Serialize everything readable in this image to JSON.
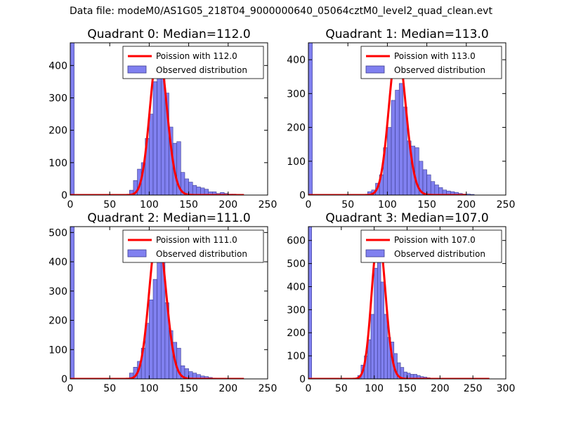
{
  "figure": {
    "title": "Data file: modeM0/AS1G05_218T04_9000000640_05064cztM0_level2_quad_clean.evt"
  },
  "colors": {
    "bar_fill": "#8080f0",
    "bar_stroke": "#3b3b8f",
    "poisson_line": "#ff0000",
    "axes": "#000000"
  },
  "chart_data": [
    {
      "type": "bar",
      "title": "Quadrant 0: Median=112.0",
      "median": 112.0,
      "xlim": [
        0,
        250
      ],
      "ylim": [
        0,
        470
      ],
      "xticks": [
        0,
        50,
        100,
        150,
        200,
        250
      ],
      "yticks": [
        0,
        100,
        200,
        300,
        400
      ],
      "bin_width": 5,
      "bins": [
        [
          0,
          470
        ],
        [
          75,
          15
        ],
        [
          80,
          45
        ],
        [
          85,
          80
        ],
        [
          90,
          100
        ],
        [
          95,
          175
        ],
        [
          100,
          250
        ],
        [
          105,
          350
        ],
        [
          110,
          400
        ],
        [
          115,
          400
        ],
        [
          120,
          315
        ],
        [
          125,
          210
        ],
        [
          130,
          160
        ],
        [
          135,
          165
        ],
        [
          140,
          70
        ],
        [
          145,
          50
        ],
        [
          150,
          40
        ],
        [
          155,
          30
        ],
        [
          160,
          25
        ],
        [
          165,
          22
        ],
        [
          170,
          18
        ],
        [
          175,
          10
        ],
        [
          180,
          10
        ],
        [
          185,
          5
        ],
        [
          190,
          8
        ],
        [
          195,
          5
        ],
        [
          200,
          3
        ],
        [
          205,
          3
        ],
        [
          210,
          2
        ]
      ],
      "legend": [
        "Poission with 112.0",
        "Observed distribution"
      ],
      "poisson": {
        "mean": 112.0,
        "peak": 450,
        "x_range": [
          0,
          220
        ]
      }
    },
    {
      "type": "bar",
      "title": "Quadrant 1: Median=113.0",
      "median": 113.0,
      "xlim": [
        0,
        250
      ],
      "ylim": [
        0,
        450
      ],
      "xticks": [
        0,
        50,
        100,
        150,
        200,
        250
      ],
      "yticks": [
        0,
        100,
        200,
        300,
        400
      ],
      "bin_width": 5,
      "bins": [
        [
          0,
          450
        ],
        [
          75,
          10
        ],
        [
          80,
          15
        ],
        [
          85,
          35
        ],
        [
          90,
          60
        ],
        [
          95,
          140
        ],
        [
          100,
          200
        ],
        [
          105,
          280
        ],
        [
          110,
          310
        ],
        [
          115,
          330
        ],
        [
          120,
          260
        ],
        [
          125,
          160
        ],
        [
          130,
          145
        ],
        [
          135,
          140
        ],
        [
          140,
          100
        ],
        [
          145,
          75
        ],
        [
          150,
          60
        ],
        [
          155,
          40
        ],
        [
          160,
          30
        ],
        [
          165,
          22
        ],
        [
          170,
          15
        ],
        [
          175,
          12
        ],
        [
          180,
          10
        ],
        [
          185,
          8
        ],
        [
          190,
          5
        ],
        [
          195,
          3
        ],
        [
          200,
          3
        ],
        [
          205,
          2
        ]
      ],
      "legend": [
        "Poission with 113.0",
        "Observed distribution"
      ],
      "poisson": {
        "mean": 113.0,
        "peak": 435,
        "x_range": [
          0,
          200
        ]
      }
    },
    {
      "type": "bar",
      "title": "Quadrant 2: Median=111.0",
      "median": 111.0,
      "xlim": [
        0,
        250
      ],
      "ylim": [
        0,
        520
      ],
      "xticks": [
        0,
        50,
        100,
        150,
        200,
        250
      ],
      "yticks": [
        0,
        100,
        200,
        300,
        400,
        500
      ],
      "bin_width": 5,
      "bins": [
        [
          0,
          520
        ],
        [
          75,
          20
        ],
        [
          80,
          40
        ],
        [
          85,
          60
        ],
        [
          90,
          105
        ],
        [
          95,
          190
        ],
        [
          100,
          270
        ],
        [
          105,
          340
        ],
        [
          110,
          470
        ],
        [
          115,
          420
        ],
        [
          120,
          260
        ],
        [
          125,
          165
        ],
        [
          130,
          125
        ],
        [
          135,
          105
        ],
        [
          140,
          45
        ],
        [
          145,
          35
        ],
        [
          150,
          25
        ],
        [
          155,
          20
        ],
        [
          160,
          15
        ],
        [
          165,
          10
        ],
        [
          170,
          8
        ],
        [
          175,
          5
        ],
        [
          180,
          3
        ],
        [
          185,
          2
        ]
      ],
      "legend": [
        "Poission with 111.0",
        "Observed distribution"
      ],
      "poisson": {
        "mean": 111.0,
        "peak": 500,
        "x_range": [
          0,
          220
        ]
      }
    },
    {
      "type": "bar",
      "title": "Quadrant 3: Median=107.0",
      "median": 107.0,
      "xlim": [
        0,
        300
      ],
      "ylim": [
        0,
        660
      ],
      "xticks": [
        0,
        50,
        100,
        150,
        200,
        250,
        300
      ],
      "yticks": [
        0,
        100,
        200,
        300,
        400,
        500,
        600
      ],
      "bin_width": 5,
      "bins": [
        [
          0,
          660
        ],
        [
          75,
          15
        ],
        [
          80,
          60
        ],
        [
          85,
          100
        ],
        [
          90,
          170
        ],
        [
          95,
          280
        ],
        [
          100,
          480
        ],
        [
          105,
          530
        ],
        [
          110,
          420
        ],
        [
          115,
          280
        ],
        [
          120,
          180
        ],
        [
          125,
          160
        ],
        [
          130,
          110
        ],
        [
          135,
          70
        ],
        [
          140,
          50
        ],
        [
          145,
          30
        ],
        [
          150,
          25
        ],
        [
          155,
          20
        ],
        [
          160,
          20
        ],
        [
          165,
          15
        ],
        [
          170,
          10
        ],
        [
          175,
          8
        ],
        [
          180,
          5
        ],
        [
          185,
          3
        ]
      ],
      "legend": [
        "Poission with 107.0",
        "Observed distribution"
      ],
      "poisson": {
        "mean": 107.0,
        "peak": 625,
        "x_range": [
          0,
          275
        ]
      }
    }
  ]
}
